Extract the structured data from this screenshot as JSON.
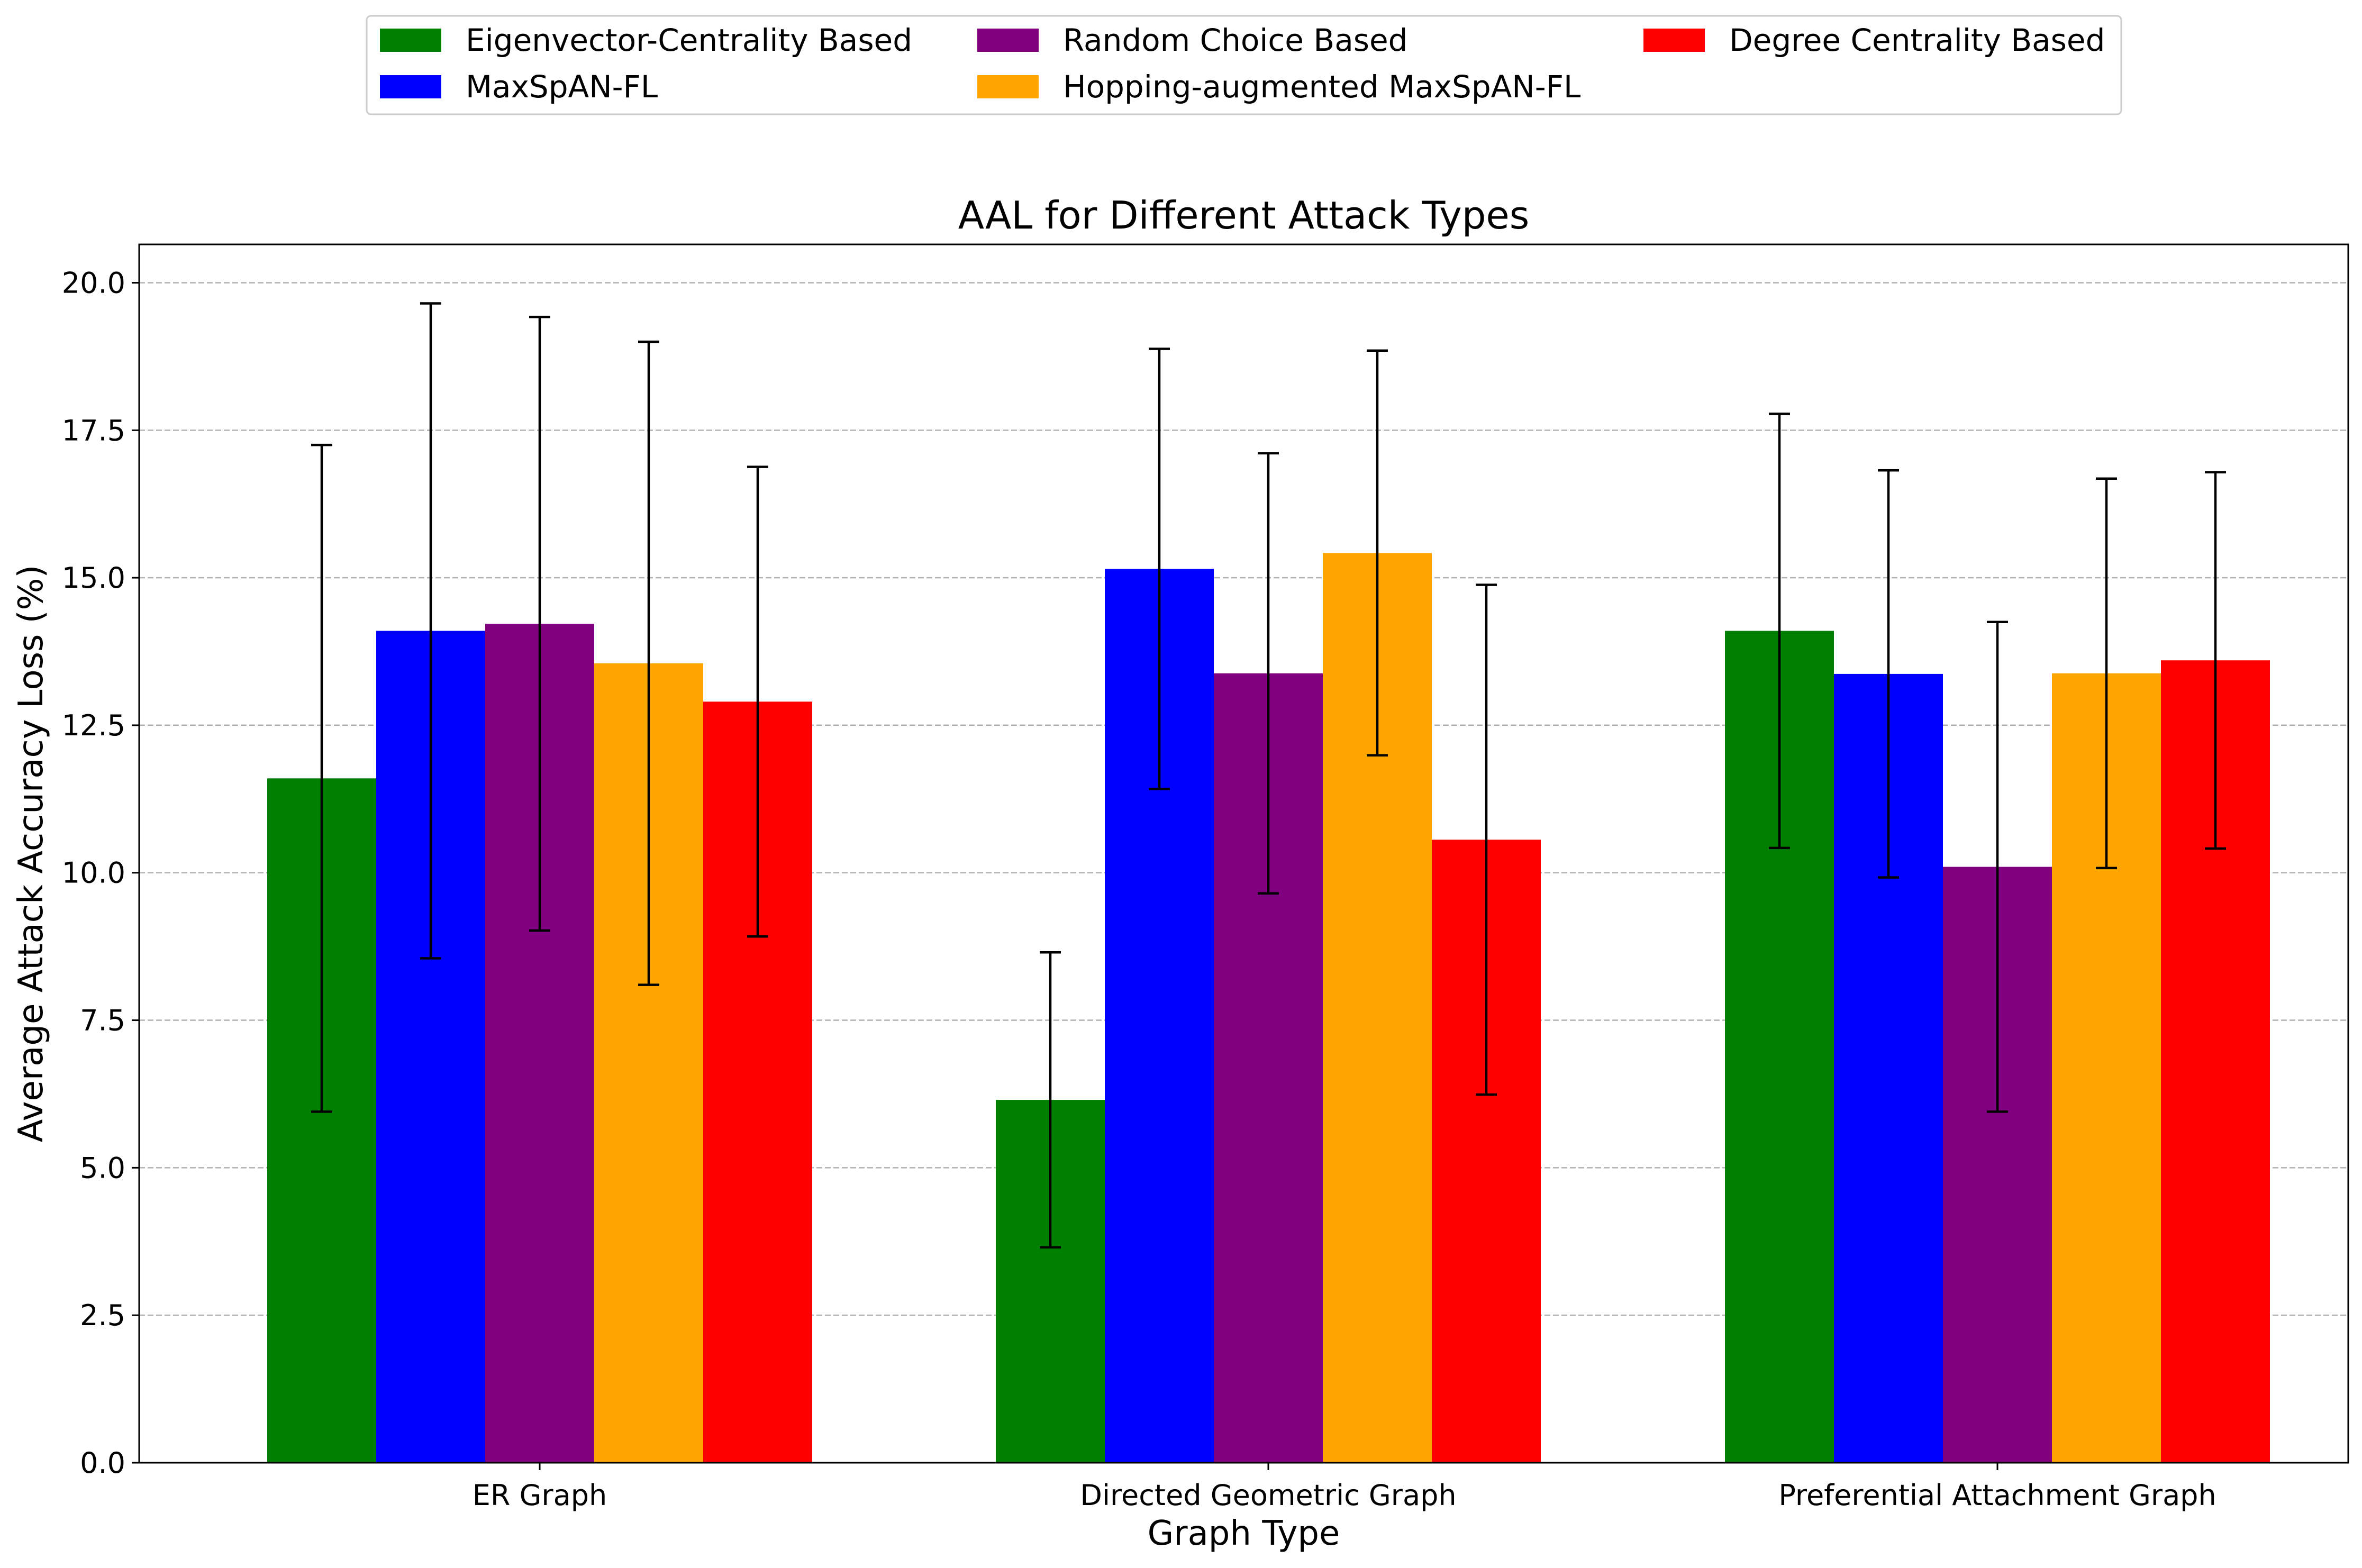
{
  "chart_data": {
    "type": "bar",
    "title": "AAL for Different Attack Types",
    "xlabel": "Graph Type",
    "ylabel": "Average Attack Accuracy Loss (%)",
    "categories": [
      "ER Graph",
      "Directed Geometric Graph",
      "Preferential Attachment Graph"
    ],
    "ylim": [
      0,
      20.65
    ],
    "yticks": [
      0.0,
      2.5,
      5.0,
      7.5,
      10.0,
      12.5,
      15.0,
      17.5,
      20.0
    ],
    "ytick_labels": [
      "0.0",
      "2.5",
      "5.0",
      "7.5",
      "10.0",
      "12.5",
      "15.0",
      "17.5",
      "20.0"
    ],
    "grid": "y-dashed",
    "legend_position": "top-center, outside plot",
    "series": [
      {
        "name": "Eigenvector-Centrality Based",
        "color": "#008000",
        "values": [
          11.6,
          6.15,
          14.1
        ],
        "errors": [
          5.65,
          2.5,
          3.68
        ]
      },
      {
        "name": "MaxSpAN-FL",
        "color": "#0000ff",
        "values": [
          14.1,
          15.15,
          13.37
        ],
        "errors": [
          5.55,
          3.73,
          3.45
        ]
      },
      {
        "name": "Random Choice Based",
        "color": "#800080",
        "values": [
          14.22,
          13.38,
          10.1
        ],
        "errors": [
          5.2,
          3.73,
          4.15
        ]
      },
      {
        "name": "Hopping-augmented MaxSpAN-FL",
        "color": "#ffa500",
        "values": [
          13.55,
          15.42,
          13.38
        ],
        "errors": [
          5.45,
          3.43,
          3.3
        ]
      },
      {
        "name": "Degree Centrality Based",
        "color": "#ff0000",
        "values": [
          12.9,
          10.56,
          13.6
        ],
        "errors": [
          3.98,
          4.32,
          3.19
        ]
      }
    ]
  }
}
